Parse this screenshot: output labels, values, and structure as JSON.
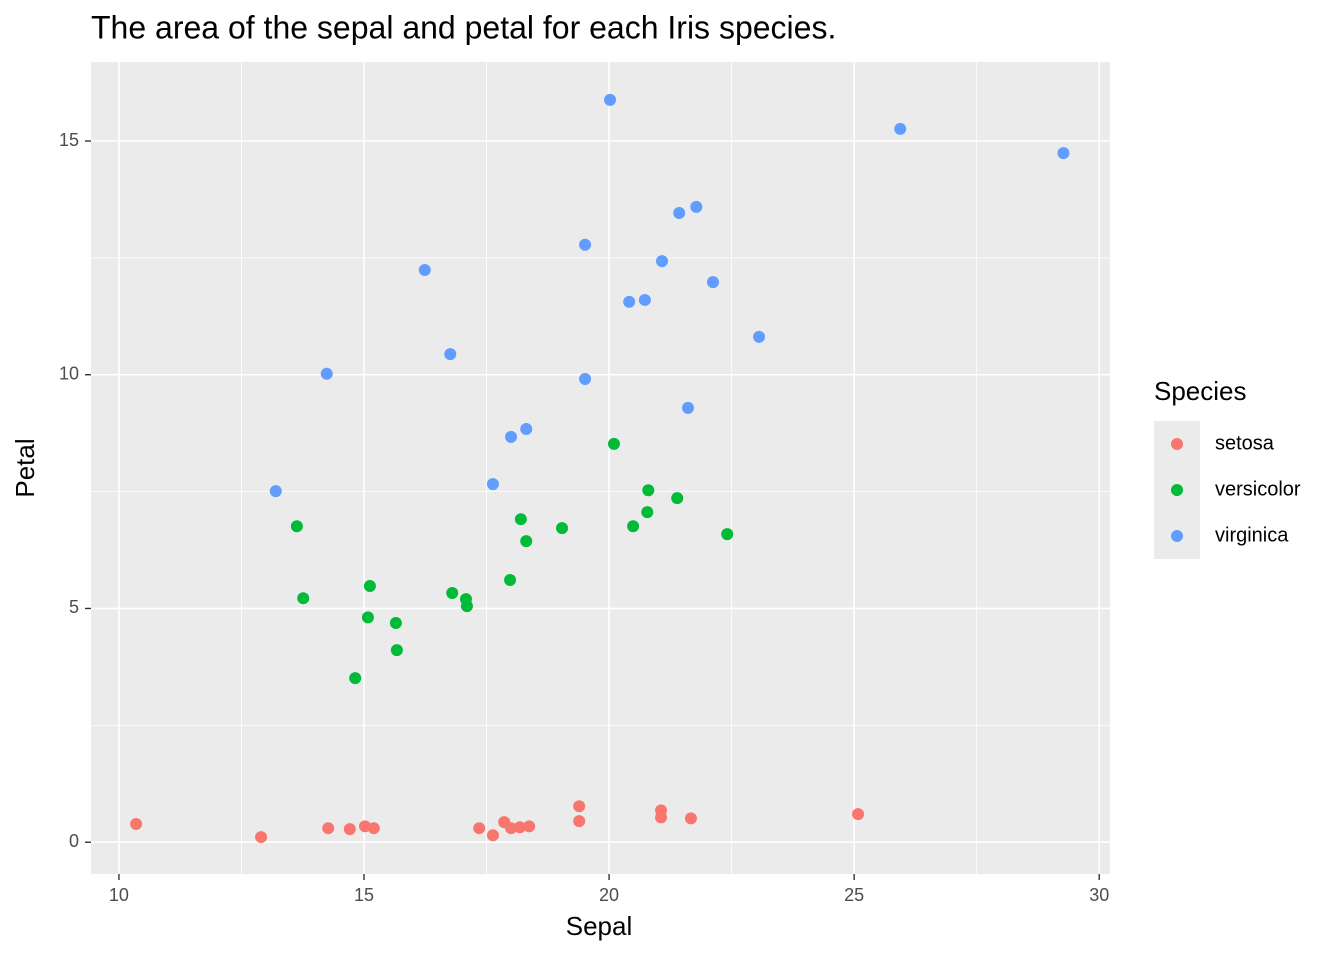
{
  "chart_data": {
    "type": "scatter",
    "title": "The area of the sepal and petal for each Iris species.",
    "x_label": "Sepal",
    "y_label": "Petal",
    "legend_title": "Species",
    "xlim": [
      9.43,
      30.22
    ],
    "xticks": [
      10,
      15,
      20,
      25,
      30
    ],
    "ylim": [
      -0.68,
      16.69
    ],
    "yticks": [
      0,
      5,
      10,
      15
    ],
    "grid": true,
    "legend_position": "right",
    "series": [
      {
        "name": "setosa",
        "color": "#F8766D",
        "x": [
          10.35,
          12.9,
          14.27,
          14.71,
          15.02,
          15.2,
          17.35,
          17.63,
          17.86,
          18.0,
          18.18,
          18.37,
          19.39,
          19.39,
          21.06,
          21.06,
          21.67,
          25.08
        ],
        "values": [
          0.39,
          0.11,
          0.3,
          0.28,
          0.34,
          0.3,
          0.3,
          0.15,
          0.43,
          0.3,
          0.32,
          0.34,
          0.77,
          0.45,
          0.68,
          0.53,
          0.51,
          0.6
        ]
      },
      {
        "name": "versicolor",
        "color": "#00BA38",
        "x": [
          13.63,
          13.76,
          14.82,
          15.08,
          15.12,
          15.65,
          15.67,
          16.8,
          17.08,
          17.1,
          17.98,
          18.2,
          18.31,
          19.04,
          20.1,
          20.49,
          20.78,
          20.8,
          21.39,
          22.41
        ],
        "values": [
          6.76,
          5.22,
          3.51,
          4.81,
          5.48,
          4.69,
          4.11,
          5.33,
          5.2,
          5.05,
          5.61,
          6.91,
          6.44,
          6.72,
          8.52,
          6.76,
          7.06,
          7.53,
          7.36,
          6.59
        ]
      },
      {
        "name": "virginica",
        "color": "#619CFF",
        "x": [
          13.2,
          14.24,
          16.24,
          16.76,
          17.63,
          18.0,
          18.31,
          19.51,
          19.51,
          20.02,
          20.41,
          20.73,
          21.08,
          21.43,
          21.61,
          21.78,
          22.12,
          23.06,
          25.94,
          29.27
        ],
        "values": [
          7.51,
          10.02,
          12.24,
          10.44,
          7.66,
          8.67,
          8.84,
          12.78,
          9.91,
          15.88,
          11.56,
          11.6,
          12.43,
          13.46,
          9.29,
          13.59,
          11.98,
          10.81,
          15.26,
          14.74
        ]
      }
    ]
  }
}
